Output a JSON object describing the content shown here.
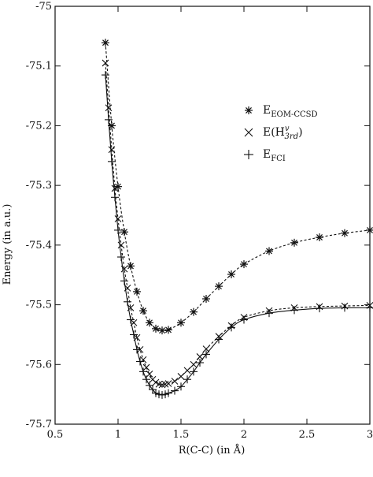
{
  "chart_data": {
    "type": "line",
    "xlabel": "R(C-C) (in Å)",
    "ylabel": "Energy (in a.u.)",
    "xlim": [
      0.5,
      3.0
    ],
    "ylim": [
      -75.7,
      -75.0
    ],
    "x_ticks": [
      "0.5",
      "1",
      "1.5",
      "2",
      "2.5",
      "3"
    ],
    "x_tick_values": [
      0.5,
      1.0,
      1.5,
      2.0,
      2.5,
      3.0
    ],
    "y_ticks": [
      "-75",
      "-75.1",
      "-75.2",
      "-75.3",
      "-75.4",
      "-75.5",
      "-75.6",
      "-75.7"
    ],
    "y_tick_values": [
      -75.0,
      -75.1,
      -75.2,
      -75.3,
      -75.4,
      -75.5,
      -75.6,
      -75.7
    ],
    "grid": false,
    "legend_position": "top-right",
    "series": [
      {
        "name": "E_EOM-CCSD",
        "legend_main": "E",
        "legend_sub": "EOM-CCSD",
        "marker": "asterisk",
        "line_style": "dashed",
        "x": [
          0.9,
          0.95,
          1.0,
          1.05,
          1.1,
          1.15,
          1.2,
          1.25,
          1.3,
          1.35,
          1.4,
          1.5,
          1.6,
          1.7,
          1.8,
          1.9,
          2.0,
          2.2,
          2.4,
          2.6,
          2.8,
          3.0
        ],
        "y": [
          -75.061,
          -75.2,
          -75.302,
          -75.378,
          -75.435,
          -75.478,
          -75.51,
          -75.53,
          -75.54,
          -75.543,
          -75.542,
          -75.53,
          -75.512,
          -75.49,
          -75.469,
          -75.449,
          -75.432,
          -75.41,
          -75.396,
          -75.387,
          -75.38,
          -75.375
        ]
      },
      {
        "name": "E(H3rd)",
        "legend_main": "E(H",
        "legend_sup": "v",
        "legend_sub": "3rd",
        "legend_end": ")",
        "marker": "x",
        "line_style": "dashed",
        "x": [
          0.9,
          0.925,
          0.95,
          0.975,
          1.0,
          1.025,
          1.05,
          1.075,
          1.1,
          1.125,
          1.15,
          1.175,
          1.2,
          1.225,
          1.25,
          1.275,
          1.3,
          1.325,
          1.35,
          1.375,
          1.4,
          1.45,
          1.5,
          1.55,
          1.6,
          1.65,
          1.7,
          1.8,
          1.9,
          2.0,
          2.2,
          2.4,
          2.6,
          2.8,
          3.0
        ],
        "y": [
          -75.095,
          -75.17,
          -75.24,
          -75.305,
          -75.356,
          -75.4,
          -75.44,
          -75.472,
          -75.505,
          -75.53,
          -75.555,
          -75.575,
          -75.592,
          -75.605,
          -75.616,
          -75.625,
          -75.63,
          -75.633,
          -75.634,
          -75.633,
          -75.632,
          -75.628,
          -75.62,
          -75.61,
          -75.6,
          -75.587,
          -75.574,
          -75.553,
          -75.535,
          -75.521,
          -75.51,
          -75.505,
          -75.503,
          -75.502,
          -75.501
        ]
      },
      {
        "name": "E_FCI",
        "legend_main": "E",
        "legend_sub": "FCI",
        "marker": "plus",
        "line_style": "solid",
        "x": [
          0.9,
          0.925,
          0.95,
          0.975,
          1.0,
          1.025,
          1.05,
          1.075,
          1.1,
          1.125,
          1.15,
          1.175,
          1.2,
          1.225,
          1.25,
          1.275,
          1.3,
          1.325,
          1.35,
          1.375,
          1.4,
          1.45,
          1.5,
          1.55,
          1.6,
          1.65,
          1.7,
          1.8,
          1.9,
          2.0,
          2.2,
          2.4,
          2.6,
          2.8,
          3.0
        ],
        "y": [
          -75.115,
          -75.19,
          -75.26,
          -75.32,
          -75.375,
          -75.42,
          -75.46,
          -75.495,
          -75.525,
          -75.55,
          -75.575,
          -75.595,
          -75.612,
          -75.625,
          -75.635,
          -75.642,
          -75.648,
          -75.65,
          -75.651,
          -75.65,
          -75.648,
          -75.644,
          -75.637,
          -75.625,
          -75.612,
          -75.597,
          -75.583,
          -75.558,
          -75.538,
          -75.525,
          -75.514,
          -75.509,
          -75.506,
          -75.505,
          -75.505
        ]
      }
    ]
  }
}
